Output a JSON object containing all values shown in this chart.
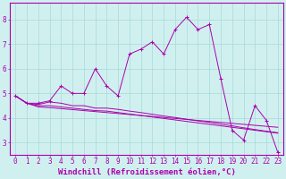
{
  "xlabel": "Windchill (Refroidissement éolien,°C)",
  "x_values": [
    0,
    1,
    2,
    3,
    4,
    5,
    6,
    7,
    8,
    9,
    10,
    11,
    12,
    13,
    14,
    15,
    16,
    17,
    18,
    19,
    20,
    21,
    22,
    23
  ],
  "line1": [
    4.9,
    4.6,
    4.6,
    4.7,
    5.3,
    5.0,
    5.0,
    6.0,
    5.3,
    4.9,
    6.6,
    6.8,
    7.1,
    6.6,
    7.6,
    8.1,
    7.6,
    7.8,
    5.6,
    3.5,
    3.1,
    4.5,
    3.9,
    2.6
  ],
  "line2": [
    4.9,
    4.6,
    4.55,
    4.65,
    4.6,
    4.5,
    4.5,
    4.4,
    4.4,
    4.35,
    4.28,
    4.22,
    4.15,
    4.08,
    4.02,
    3.95,
    3.88,
    3.82,
    3.75,
    3.68,
    3.6,
    3.53,
    3.46,
    3.4
  ],
  "line3": [
    4.9,
    4.6,
    4.5,
    4.5,
    4.45,
    4.4,
    4.35,
    4.3,
    4.28,
    4.22,
    4.16,
    4.1,
    4.04,
    3.98,
    3.92,
    3.86,
    3.8,
    3.74,
    3.68,
    3.62,
    3.56,
    3.5,
    3.44,
    3.38
  ],
  "line4": [
    4.9,
    4.6,
    4.45,
    4.42,
    4.38,
    4.34,
    4.3,
    4.26,
    4.22,
    4.18,
    4.14,
    4.1,
    4.06,
    4.02,
    3.98,
    3.94,
    3.9,
    3.86,
    3.82,
    3.78,
    3.74,
    3.7,
    3.66,
    3.62
  ],
  "line_color": "#aa00aa",
  "bg_color": "#d0f0f0",
  "grid_color": "#a8d8d8",
  "ylim": [
    2.5,
    8.7
  ],
  "yticks": [
    3,
    4,
    5,
    6,
    7,
    8
  ],
  "tick_fontsize": 5.5,
  "xlabel_fontsize": 6.5
}
